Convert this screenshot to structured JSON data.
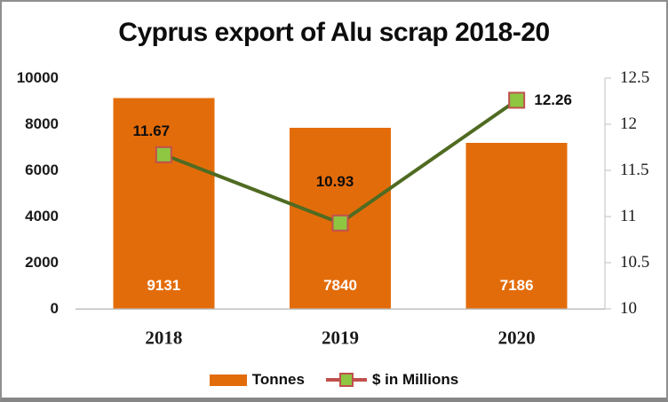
{
  "window": {
    "background": "#ffffff",
    "border_color_sides": "#8f8f8f",
    "border_color_bottom": "#868686"
  },
  "chart_data": {
    "type": "combo",
    "title": "Cyprus export of Alu scrap 2018-20",
    "categories": [
      "2018",
      "2019",
      "2020"
    ],
    "series": [
      {
        "name": "Tonnes",
        "type": "bar",
        "axis": "left",
        "values": [
          9131,
          7840,
          7186
        ],
        "value_labels": [
          "9131",
          "7840",
          "7186"
        ],
        "color": "#e36c0a",
        "label_color": "#ffffff"
      },
      {
        "name": "$ in Millions",
        "type": "line",
        "axis": "right",
        "values": [
          11.67,
          10.93,
          12.26
        ],
        "value_labels": [
          "11.67",
          "10.93",
          "12.26"
        ],
        "line_color": "#4f6b22",
        "marker_fill": "#8ec641",
        "marker_border": "#c0504d",
        "legend_line_color": "#c0504d",
        "label_offsets": [
          [
            -14,
            -26
          ],
          [
            -6,
            -46
          ],
          [
            41,
            0
          ]
        ]
      }
    ],
    "left_axis": {
      "min": 0,
      "max": 10000,
      "ticks": [
        "10000",
        "8000",
        "6000",
        "4000",
        "2000",
        "0"
      ],
      "tick_values": [
        10000,
        8000,
        6000,
        4000,
        2000,
        0
      ]
    },
    "right_axis": {
      "min": 10,
      "max": 12.5,
      "ticks": [
        "12.5",
        "12",
        "11.5",
        "11",
        "10.5",
        "10"
      ],
      "tick_values": [
        12.5,
        12,
        11.5,
        11,
        10.5,
        10
      ],
      "axis_color": "#bfbfbf"
    },
    "baseline_color": "#bfbfbf",
    "grid": false,
    "legend": {
      "position": "bottom"
    }
  }
}
